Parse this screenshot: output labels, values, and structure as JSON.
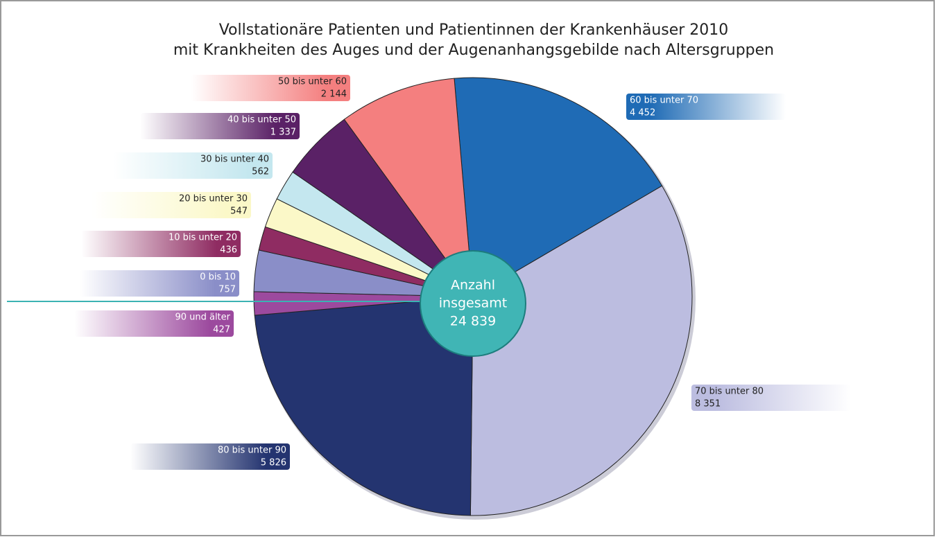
{
  "chart_data": {
    "type": "pie",
    "title": [
      "Vollstationäre Patienten und Patientinnen der Krankenhäuser 2010",
      "mit Krankheiten des Auges und der Augenanhangsgebilde nach Altersgruppen"
    ],
    "categories": [
      "60 bis unter 70",
      "70 bis unter 80",
      "80 bis unter 90",
      "90 und älter",
      "0 bis 10",
      "10 bis unter 20",
      "20 bis unter 30",
      "30 bis unter 40",
      "40 bis unter 50",
      "50 bis unter 60"
    ],
    "values": [
      4452,
      8351,
      5826,
      427,
      757,
      436,
      547,
      562,
      1337,
      2144
    ],
    "value_labels": [
      "4 452",
      "8 351",
      "5 826",
      "427",
      "757",
      "436",
      "547",
      "562",
      "1 337",
      "2 144"
    ],
    "colors": [
      "#1f6bb5",
      "#bcbde0",
      "#243470",
      "#9c4a9e",
      "#8a8ec8",
      "#8f2c62",
      "#fbf8c8",
      "#c4e7ef",
      "#5a2166",
      "#f47f7f"
    ],
    "center_label": [
      "Anzahl",
      "insgesamt"
    ],
    "total": 24839,
    "total_label": "24 839",
    "center_color": "#40b5b5"
  }
}
